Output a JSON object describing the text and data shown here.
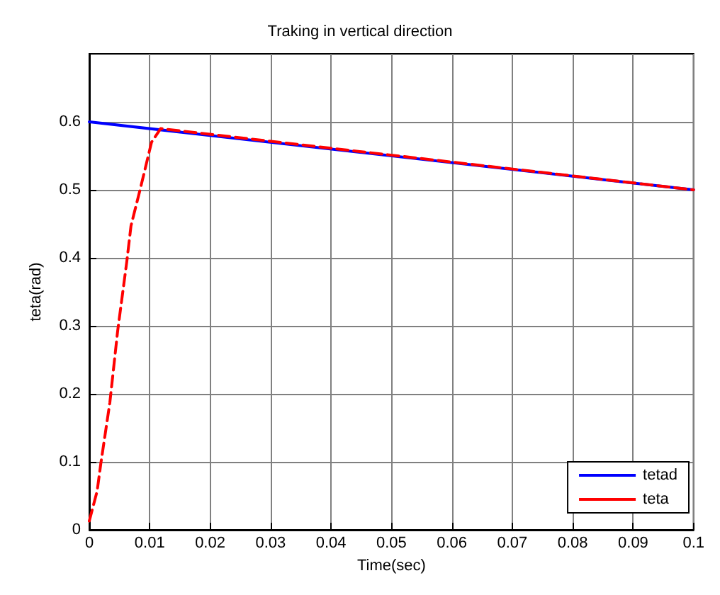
{
  "chart_data": {
    "type": "line",
    "title": "Traking in vertical direction",
    "xlabel": "Time(sec)",
    "ylabel": "teta(rad)",
    "xlim": [
      0,
      0.1
    ],
    "xticks": [
      0,
      0.01,
      0.02,
      0.03,
      0.04,
      0.05,
      0.06,
      0.07,
      0.08,
      0.09,
      0.1
    ],
    "ylim": [
      0,
      0.7
    ],
    "yticks": [
      0,
      0.1,
      0.2,
      0.3,
      0.4,
      0.5,
      0.6
    ],
    "grid": true,
    "legend": "bottom right",
    "series": [
      {
        "name": "tetad",
        "color": "#0000ff",
        "line_style": "solid",
        "x": [
          0,
          0.1
        ],
        "values": [
          0.6,
          0.5
        ]
      },
      {
        "name": "teta",
        "color": "#ff0000",
        "line_style": "dashed",
        "x": [
          0,
          0.0013,
          0.0019,
          0.0034,
          0.0047,
          0.0062,
          0.0069,
          0.0084,
          0.0103,
          0.0118,
          0.1
        ],
        "values": [
          0.013,
          0.057,
          0.097,
          0.187,
          0.293,
          0.394,
          0.447,
          0.5,
          0.57,
          0.59,
          0.5
        ]
      }
    ]
  }
}
